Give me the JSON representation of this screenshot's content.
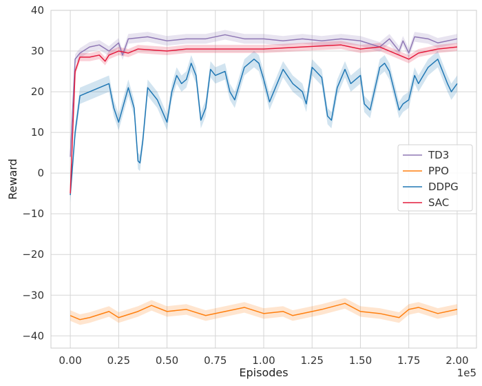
{
  "chart_data": {
    "type": "line",
    "title": "",
    "xlabel": "Episodes",
    "ylabel": "Reward",
    "x_scale_label": "1e5",
    "xlim": [
      -0.1,
      2.1
    ],
    "ylim": [
      -43,
      40
    ],
    "grid": true,
    "legend_position": "center-right",
    "x_ticks": [
      0,
      0.25,
      0.5,
      0.75,
      1.0,
      1.25,
      1.5,
      1.75,
      2.0
    ],
    "x_tick_labels": [
      "0.00",
      "0.25",
      "0.50",
      "0.75",
      "1.00",
      "1.25",
      "1.50",
      "1.75",
      "2.00"
    ],
    "y_ticks": [
      40,
      30,
      20,
      10,
      0,
      -10,
      -20,
      -30,
      -40
    ],
    "y_tick_labels": [
      "40",
      "30",
      "20",
      "10",
      "0",
      "−10",
      "−20",
      "−30",
      "−40"
    ],
    "series": [
      {
        "name": "TD3",
        "color": "#8e76b4",
        "band": 1.2,
        "x": [
          0,
          0.025,
          0.05,
          0.1,
          0.15,
          0.2,
          0.25,
          0.27,
          0.3,
          0.4,
          0.5,
          0.6,
          0.7,
          0.8,
          0.9,
          1.0,
          1.1,
          1.2,
          1.3,
          1.4,
          1.5,
          1.6,
          1.65,
          1.7,
          1.72,
          1.75,
          1.78,
          1.85,
          1.9,
          2.0
        ],
        "y": [
          4,
          28,
          29.5,
          31,
          31.5,
          30,
          32,
          29,
          33,
          33.5,
          32.5,
          33,
          33,
          34,
          33,
          33,
          32.5,
          33,
          32.5,
          33,
          32.5,
          31,
          33,
          30,
          32.5,
          29.5,
          33.5,
          33,
          32,
          33
        ]
      },
      {
        "name": "PPO",
        "color": "#ff7f0e",
        "band": 1.3,
        "x": [
          0,
          0.05,
          0.1,
          0.2,
          0.25,
          0.35,
          0.42,
          0.5,
          0.6,
          0.7,
          0.8,
          0.9,
          1.0,
          1.1,
          1.15,
          1.25,
          1.3,
          1.42,
          1.5,
          1.6,
          1.7,
          1.75,
          1.8,
          1.9,
          2.0
        ],
        "y": [
          -35,
          -36,
          -35.5,
          -34,
          -35.5,
          -34,
          -32.5,
          -34,
          -33.5,
          -35,
          -34,
          -33,
          -34.5,
          -34,
          -35,
          -34,
          -33.5,
          -32,
          -34,
          -34.5,
          -35.5,
          -33.5,
          -33,
          -34.5,
          -33.5
        ]
      },
      {
        "name": "DDPG",
        "color": "#1f77b4",
        "band": 2.0,
        "x": [
          0,
          0.025,
          0.05,
          0.1,
          0.15,
          0.2,
          0.225,
          0.25,
          0.3,
          0.33,
          0.35,
          0.36,
          0.375,
          0.4,
          0.45,
          0.5,
          0.525,
          0.55,
          0.575,
          0.6,
          0.625,
          0.65,
          0.675,
          0.7,
          0.725,
          0.75,
          0.8,
          0.825,
          0.85,
          0.875,
          0.9,
          0.95,
          0.975,
          1.0,
          1.03,
          1.1,
          1.15,
          1.2,
          1.22,
          1.25,
          1.3,
          1.33,
          1.35,
          1.38,
          1.42,
          1.45,
          1.5,
          1.52,
          1.55,
          1.6,
          1.625,
          1.65,
          1.7,
          1.72,
          1.75,
          1.78,
          1.8,
          1.85,
          1.9,
          1.95,
          1.97,
          2.0
        ],
        "y": [
          -5.4,
          10,
          19,
          20,
          21,
          22,
          16,
          12.5,
          21,
          16,
          3,
          2.5,
          8,
          21,
          18,
          12.5,
          20,
          24,
          22,
          23,
          27,
          24,
          13,
          16,
          25.5,
          24,
          25,
          20,
          18,
          22,
          26,
          28,
          27,
          23,
          17.5,
          25.5,
          22,
          20,
          17,
          26,
          23.5,
          14,
          13,
          21,
          25.5,
          22,
          24,
          17,
          15.5,
          26,
          27,
          25,
          15.5,
          17,
          18,
          24,
          22,
          26,
          28,
          22,
          20,
          22
        ]
      },
      {
        "name": "SAC",
        "color": "#e41a3c",
        "band": 1.0,
        "x": [
          0,
          0.025,
          0.05,
          0.1,
          0.15,
          0.18,
          0.2,
          0.25,
          0.3,
          0.35,
          0.5,
          0.6,
          0.8,
          1.0,
          1.2,
          1.4,
          1.5,
          1.6,
          1.7,
          1.75,
          1.8,
          1.9,
          2.0
        ],
        "y": [
          -5,
          25,
          28.5,
          28.5,
          29,
          27.5,
          29,
          30,
          29.5,
          30.5,
          30,
          30.5,
          30.5,
          30.5,
          31,
          31.5,
          30.5,
          31,
          29,
          28,
          29.5,
          30.5,
          31
        ]
      }
    ]
  }
}
